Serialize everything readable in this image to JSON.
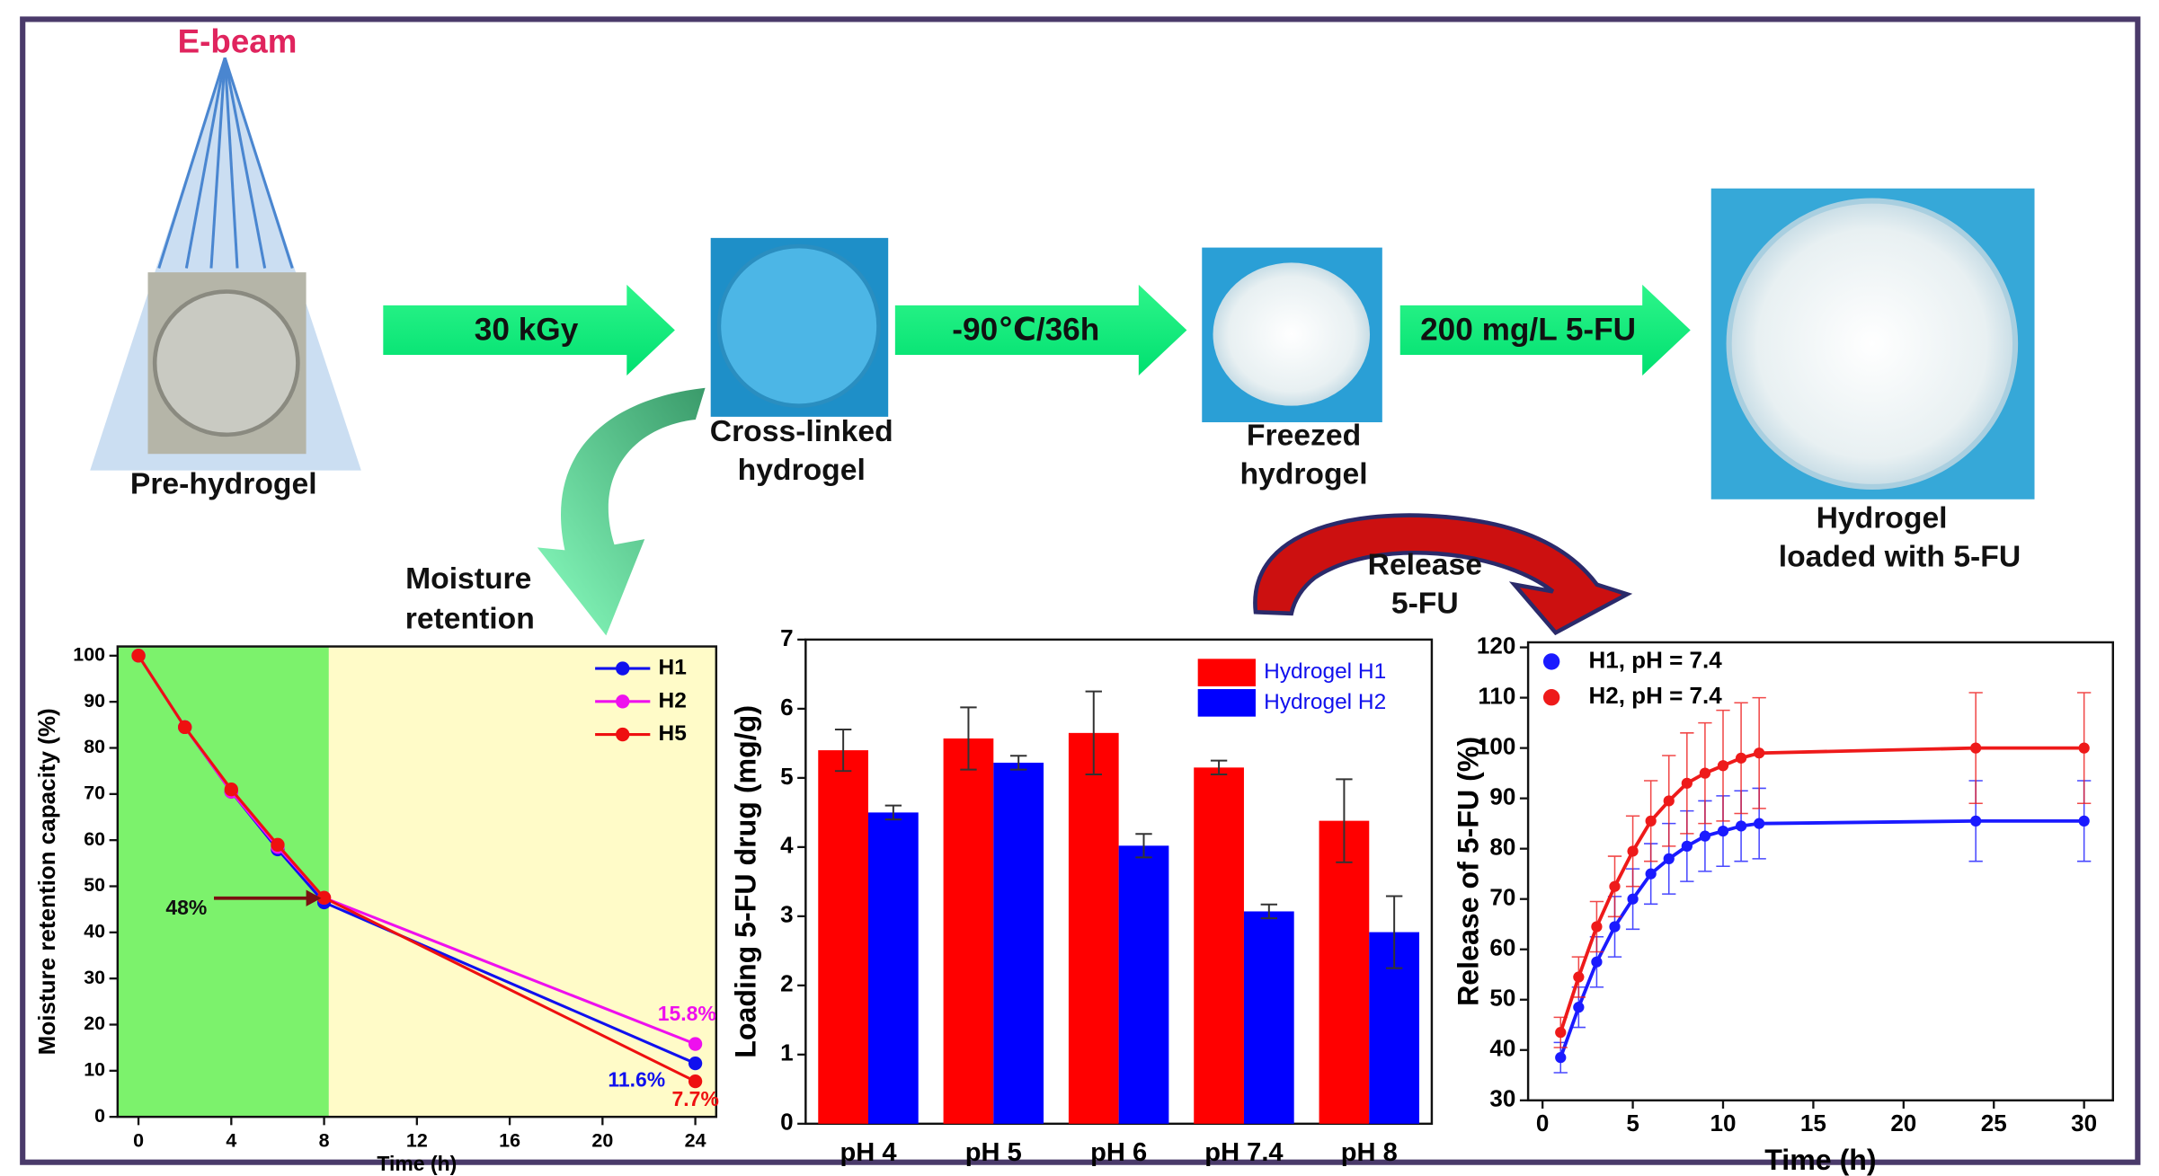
{
  "diagram": {
    "ebeam": "E-beam",
    "pre_hydrogel": "Pre-hydrogel",
    "step1": "30 kGy",
    "cross_linked": [
      "Cross-linked",
      "hydrogel"
    ],
    "step2": "-90℃/36h",
    "freezed": [
      "Freezed",
      "hydrogel"
    ],
    "step3": "200 mg/L 5-FU",
    "loaded": [
      "Hydrogel",
      "loaded with 5-FU"
    ],
    "moisture": [
      "Moisture",
      "retention"
    ],
    "release": [
      "Release",
      "5-FU"
    ]
  },
  "chart_data": [
    {
      "type": "line",
      "x_label": "Time (h)",
      "y_label": "Moisture retention capacity (%)",
      "x": [
        0,
        2,
        4,
        6,
        8,
        24
      ],
      "xlim": [
        -0.9,
        24.9
      ],
      "xticks": [
        0,
        4,
        8,
        12,
        16,
        20,
        24
      ],
      "ylim": [
        0,
        102
      ],
      "yticks": [
        0,
        10,
        20,
        30,
        40,
        50,
        60,
        70,
        80,
        90,
        100
      ],
      "highlight_xlim": [
        -0.9,
        8.2
      ],
      "series": [
        {
          "name": "H1",
          "color": "#1010ee",
          "values": [
            100,
            84.5,
            70.5,
            58,
            46.5,
            11.6
          ]
        },
        {
          "name": "H2",
          "color": "#ee10ee",
          "values": [
            100,
            84.5,
            70.5,
            58.5,
            47.5,
            15.8
          ]
        },
        {
          "name": "H5",
          "color": "#ee1010",
          "values": [
            100,
            84.5,
            71,
            59,
            47.5,
            7.7
          ]
        }
      ],
      "annotations": [
        {
          "text": "48%",
          "color": "#111111"
        },
        {
          "text": "15.8%",
          "color": "#ee10ee"
        },
        {
          "text": "11.6%",
          "color": "#1010ee"
        },
        {
          "text": "7.7%",
          "color": "#ee1010"
        }
      ]
    },
    {
      "type": "bar",
      "y_label": "Loading 5-FU drug (mg/g)",
      "categories": [
        "pH 4",
        "pH 5",
        "pH 6",
        "pH 7.4",
        "pH 8"
      ],
      "ylim": [
        0,
        7
      ],
      "yticks": [
        0,
        1,
        2,
        3,
        4,
        5,
        6,
        7
      ],
      "series": [
        {
          "name": "Hydrogel H1",
          "color": "#ff0000",
          "values": [
            5.4,
            5.57,
            5.65,
            5.15,
            4.38
          ],
          "errors": [
            0.3,
            0.45,
            0.6,
            0.1,
            0.6
          ]
        },
        {
          "name": "Hydrogel H2",
          "color": "#0000ff",
          "values": [
            4.5,
            5.22,
            4.02,
            3.07,
            2.77
          ],
          "errors": [
            0.1,
            0.1,
            0.17,
            0.1,
            0.52
          ]
        }
      ]
    },
    {
      "type": "scatter",
      "x_label": "Time (h)",
      "y_label": "Release of 5-FU (%)",
      "x": [
        1,
        2,
        3,
        4,
        5,
        6,
        7,
        8,
        9,
        10,
        11,
        12,
        24,
        30
      ],
      "xlim": [
        -0.8,
        31.6
      ],
      "xticks": [
        0,
        5,
        10,
        15,
        20,
        25,
        30
      ],
      "ylim": [
        30,
        121
      ],
      "yticks": [
        30,
        40,
        50,
        60,
        70,
        80,
        90,
        100,
        110,
        120
      ],
      "series": [
        {
          "name": "H1, pH = 7.4",
          "color": "#1a1aff",
          "values": [
            38.5,
            48.5,
            57.5,
            64.5,
            70,
            75,
            78,
            80.5,
            82.5,
            83.5,
            84.5,
            85,
            85.5,
            85.5
          ],
          "errors": [
            3,
            4,
            5,
            6,
            6,
            6,
            7,
            7,
            7,
            7,
            7,
            7,
            8,
            8
          ]
        },
        {
          "name": "H2, pH = 7.4",
          "color": "#ee1a1a",
          "values": [
            43.5,
            54.5,
            64.5,
            72.5,
            79.5,
            85.5,
            89.5,
            93,
            95,
            96.5,
            98,
            99,
            100,
            100
          ],
          "errors": [
            3,
            4,
            5,
            6,
            7,
            8,
            9,
            10,
            10,
            11,
            11,
            11,
            11,
            11
          ]
        }
      ]
    }
  ]
}
